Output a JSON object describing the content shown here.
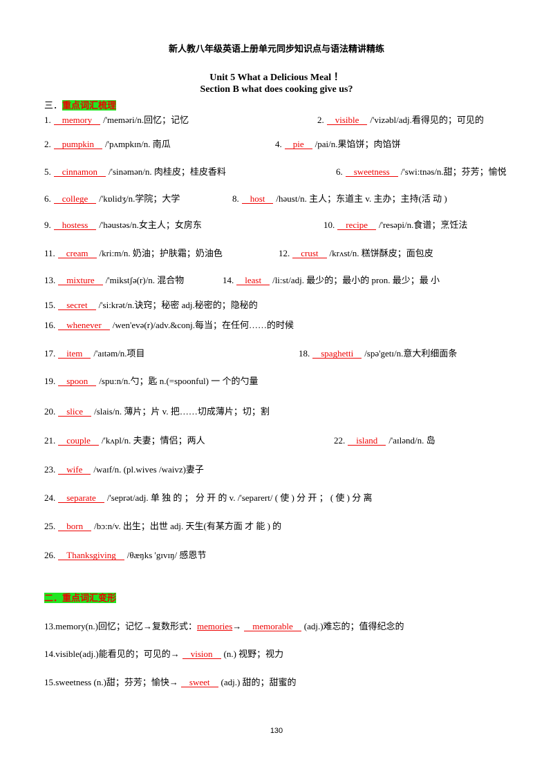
{
  "header": {
    "title": "新人教八年级英语上册单元同步知识点与语法精讲精练",
    "unit": "Unit 5 What  a  Delicious  Meal ！",
    "section": "Section B what does  cooking  give  us?"
  },
  "part1": {
    "number": "三．",
    "heading": "重点词汇梳理",
    "rows": [
      [
        {
          "num": "1.",
          "answer": "memory",
          "text": "/'meməri/n.回忆；记忆"
        },
        {
          "num": "2.",
          "answer": "visible",
          "text": "/'vizəbl/adj.看得见的；可见的"
        }
      ],
      [
        {
          "num": "2.",
          "answer": "pumpkin",
          "text": "/'pʌmpkɪn/n. 南瓜"
        },
        {
          "num": "4.",
          "answer": "pie",
          "text": "/pai/n.果馅饼；肉馅饼"
        }
      ],
      [
        {
          "num": "5.",
          "answer": "cinnamon",
          "text": "/'sinəmən/n. 肉桂皮；桂皮香料"
        },
        {
          "num": "6.",
          "answer": "sweetness",
          "text": "/'swi:tnəs/n.甜；芬芳；愉悦"
        }
      ],
      [
        {
          "num": "6.",
          "answer": "college",
          "text": "/'kɒlidʒ/n.学院；大学"
        },
        {
          "num": "8.",
          "answer": "host",
          "text": "/həust/n. 主人；东道主 v. 主办；主持(活  动 )"
        }
      ],
      [
        {
          "num": "9.",
          "answer": "hostess",
          "text": "/'həustəs/n.女主人；女房东"
        },
        {
          "num": "10.",
          "answer": "recipe",
          "text": "/'resəpi/n.食谱；烹饪法"
        }
      ],
      [
        {
          "num": "11.",
          "answer": "cream",
          "text": "/kri:m/n. 奶油；护肤霜；奶油色"
        },
        {
          "num": "12.",
          "answer": "crust",
          "text": "/krʌst/n. 糕饼酥皮；面包皮"
        }
      ],
      [
        {
          "num": "13.",
          "answer": "mixture",
          "text": "/'mikstʃə(r)/n. 混合物"
        },
        {
          "num": "14.",
          "answer": "least",
          "text": "/li:st/adj. 最少的；最小的  pron.  最少；最  小"
        }
      ],
      [
        {
          "num": "15.",
          "answer": "secret",
          "text": "/'si:krət/n.诀窍；秘密  adj.秘密的；隐秘的"
        }
      ],
      [
        {
          "num": "16.",
          "answer": "whenever",
          "text": "/wen'evə(r)/adv.&conj.每当；在任何……的时候"
        }
      ],
      [
        {
          "num": "17.",
          "answer": "item",
          "text": "/'aɪtəm/n.项目"
        },
        {
          "num": "18.",
          "answer": "spaghetti",
          "text": "/spə'getɪ/n.意大利细面条"
        }
      ],
      [
        {
          "num": "19.",
          "answer": "spoon",
          "text": "/spu:n/n.勺；匙 n.(=spoonful) 一 个的勺量"
        }
      ],
      [
        {
          "num": "20.",
          "answer": "slice",
          "text": "/slais/n. 薄片；片 v.  把……切成薄片；切；割"
        }
      ],
      [
        {
          "num": "21.",
          "answer": "couple",
          "text": "/'kʌpl/n. 夫妻；情侣；两人"
        },
        {
          "num": "22.",
          "answer": "island",
          "text": "/'aɪlənd/n.  岛"
        }
      ],
      [
        {
          "num": "23.",
          "answer": "wife",
          "text": "/waɪf/n. (pl.wives  /waivz)妻子"
        }
      ],
      [
        {
          "num": "24.",
          "answer": "separate",
          "text": "/'seprət/adj. 单  独  的  ；  分  开  的  v. /'separert/  ( 使  ) 分  开  ；  ( 使  ) 分  离"
        }
      ],
      [
        {
          "num": "25.",
          "answer": "born",
          "text": "/bɔ:n/v. 出生；出世  adj.  天生(有某方面  才  能  ) 的"
        }
      ],
      [
        {
          "num": "26.",
          "answer": "Thanksgiving",
          "text": "/θæŋks 'gɪvɪŋ/  感恩节"
        }
      ]
    ]
  },
  "part2": {
    "heading": "二．重点词汇变形",
    "lines": [
      {
        "lead": "13.memory(n.)回忆；记忆→复数形式：",
        "answers": [
          "memories",
          "memorable"
        ],
        "joiner": "→",
        "tail": "(adj.)难忘的；值得纪念的"
      },
      {
        "lead": "14.visible(adj.)能看见的；可见的→",
        "answers": [
          "vision"
        ],
        "tail": "(n.) 视野；视力"
      },
      {
        "lead": "15.sweetness  (n.)甜；芬芳；愉快→",
        "answers": [
          "sweet"
        ],
        "tail": "(adj.) 甜的；甜蜜的"
      }
    ]
  },
  "footer": {
    "page": "130"
  }
}
